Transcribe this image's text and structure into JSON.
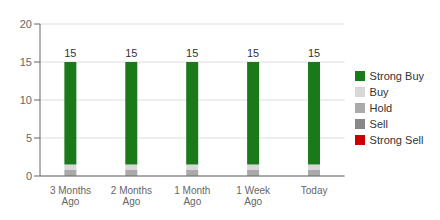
{
  "chart_data": {
    "type": "bar",
    "stacked": true,
    "grid": true,
    "categories": [
      "3 Months\nAgo",
      "2 Months\nAgo",
      "1 Month\nAgo",
      "1 Week\nAgo",
      "Today"
    ],
    "series": [
      {
        "name": "Strong Sell",
        "color": "#cc0000",
        "values": [
          0,
          0,
          0,
          0,
          0
        ]
      },
      {
        "name": "Sell",
        "color": "#888888",
        "values": [
          0,
          0,
          0,
          0,
          0
        ]
      },
      {
        "name": "Hold",
        "color": "#aaaaaa",
        "values": [
          0.8,
          0.8,
          0.8,
          0.8,
          0.8
        ]
      },
      {
        "name": "Buy",
        "color": "#d8d8d8",
        "values": [
          0.7,
          0.7,
          0.7,
          0.7,
          0.7
        ]
      },
      {
        "name": "Strong Buy",
        "color": "#1a7a1a",
        "values": [
          13.5,
          13.5,
          13.5,
          13.5,
          13.5
        ]
      }
    ],
    "totals": [
      15,
      15,
      15,
      15,
      15
    ],
    "ylim": [
      0,
      20
    ],
    "yticks": [
      0,
      5,
      10,
      15,
      20
    ]
  }
}
